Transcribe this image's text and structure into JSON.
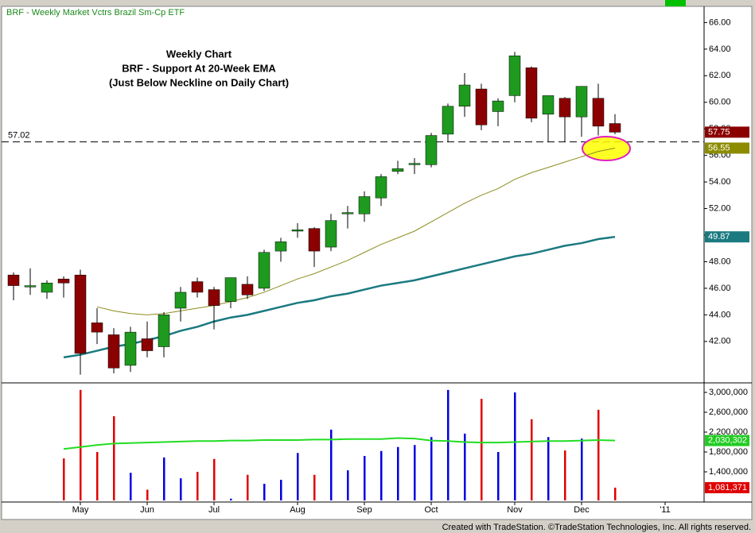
{
  "chart_data": {
    "type": "candlestick",
    "title": "BRF - Weekly  Market Vctrs Brazil Sm-Cp ETF",
    "annotations": [
      "Weekly Chart",
      "BRF - Support At 20-Week EMA",
      "(Just Below Neckline on Daily Chart)"
    ],
    "footer": "Created with TradeStation. ©TradeStation Technologies, Inc. All rights reserved.",
    "categories": [
      null,
      null,
      null,
      null,
      "May",
      null,
      null,
      null,
      "Jun",
      null,
      null,
      null,
      "Jul",
      null,
      null,
      null,
      null,
      "Aug",
      null,
      null,
      null,
      "Sep",
      null,
      null,
      null,
      "Oct",
      null,
      null,
      null,
      null,
      "Nov",
      null,
      null,
      null,
      "Dec",
      null,
      null,
      null,
      null,
      "'11",
      null,
      null
    ],
    "open": [
      47.0,
      46.1,
      45.7,
      46.7,
      47.0,
      43.4,
      42.5,
      40.2,
      42.2,
      41.6,
      44.5,
      46.5,
      45.9,
      45.0,
      46.3,
      46.0,
      48.8,
      50.3,
      50.5,
      49.1,
      51.6,
      51.6,
      52.8,
      54.8,
      55.3,
      55.3,
      57.6,
      59.7,
      61.0,
      59.3,
      60.5,
      62.6,
      59.1,
      60.3,
      58.9,
      60.3,
      58.4,
      null,
      null,
      null,
      null,
      null
    ],
    "high": [
      47.2,
      47.5,
      46.6,
      46.9,
      47.4,
      44.5,
      43.0,
      43.1,
      43.5,
      44.2,
      46.1,
      46.8,
      46.1,
      46.8,
      46.9,
      48.9,
      49.8,
      50.9,
      50.6,
      51.6,
      52.2,
      53.3,
      54.6,
      55.6,
      55.8,
      57.7,
      59.9,
      62.2,
      61.4,
      60.3,
      63.8,
      62.7,
      60.5,
      60.4,
      61.2,
      61.4,
      59.1,
      null,
      null,
      null,
      null,
      null
    ],
    "low": [
      45.1,
      45.5,
      45.2,
      45.3,
      39.5,
      41.8,
      39.6,
      39.7,
      40.8,
      40.8,
      43.5,
      45.3,
      42.9,
      44.5,
      45.2,
      45.8,
      48.0,
      49.8,
      47.6,
      48.8,
      50.5,
      51.0,
      52.2,
      54.6,
      54.6,
      55.1,
      57.0,
      58.9,
      57.9,
      58.2,
      60.0,
      58.5,
      57.0,
      57.0,
      57.4,
      57.5,
      57.6,
      null,
      null,
      null,
      null,
      null
    ],
    "close": [
      46.2,
      46.2,
      46.4,
      46.4,
      41.1,
      42.7,
      40.0,
      42.7,
      41.3,
      44.0,
      45.7,
      45.7,
      44.7,
      46.8,
      45.5,
      48.7,
      49.5,
      50.4,
      48.8,
      51.1,
      51.7,
      52.9,
      54.4,
      55.0,
      55.4,
      57.5,
      59.7,
      61.3,
      58.3,
      60.1,
      63.5,
      58.8,
      60.5,
      58.9,
      61.2,
      58.2,
      57.75,
      null,
      null,
      null,
      null,
      null
    ],
    "up_color": "#1e9a1e",
    "down_color": "#8b0000",
    "ylim": [
      39,
      67.1
    ],
    "yticks": [
      {
        "value": 66,
        "label": "66.00"
      },
      {
        "value": 64,
        "label": "64.00"
      },
      {
        "value": 62,
        "label": "62.00"
      },
      {
        "value": 60,
        "label": "60.00"
      },
      {
        "value": 58,
        "label": "58.00"
      },
      {
        "value": 56,
        "label": "56.00"
      },
      {
        "value": 54,
        "label": "54.00"
      },
      {
        "value": 52,
        "label": "52.00"
      },
      {
        "value": 50,
        "label": "50.00"
      },
      {
        "value": 48,
        "label": "48.00"
      },
      {
        "value": 46,
        "label": "46.00"
      },
      {
        "value": 44,
        "label": "44.00"
      },
      {
        "value": 42,
        "label": "42.00"
      }
    ],
    "overlays": [
      {
        "color": "#8c8c1e",
        "values": [
          null,
          null,
          null,
          null,
          null,
          44.6,
          44.3,
          44.1,
          44.0,
          44.1,
          44.3,
          44.5,
          44.7,
          45.0,
          45.3,
          45.7,
          46.2,
          46.7,
          47.1,
          47.6,
          48.1,
          48.7,
          49.3,
          49.8,
          50.3,
          51.0,
          51.7,
          52.4,
          53.0,
          53.5,
          54.2,
          54.7,
          55.1,
          55.5,
          55.9,
          56.3,
          56.55,
          null,
          null,
          null,
          null,
          null
        ]
      },
      {
        "color": "#1a7a80",
        "values": [
          null,
          null,
          null,
          40.8,
          41.0,
          41.3,
          41.6,
          41.8,
          42.1,
          42.4,
          42.8,
          43.1,
          43.5,
          43.8,
          44.0,
          44.3,
          44.6,
          44.9,
          45.1,
          45.4,
          45.6,
          45.9,
          46.2,
          46.4,
          46.6,
          46.9,
          47.2,
          47.5,
          47.8,
          48.1,
          48.4,
          48.6,
          48.9,
          49.2,
          49.4,
          49.7,
          49.87,
          null,
          null,
          null,
          null,
          null
        ]
      }
    ],
    "reference_line": {
      "value": 57.02,
      "label": "57.02"
    },
    "price_tags": [
      {
        "value": 57.75,
        "label": "57.75",
        "color": "#8b0000"
      },
      {
        "value": 56.55,
        "label": "56.55",
        "color": "#8c8c00"
      },
      {
        "value": 49.87,
        "label": "49.87",
        "color": "#1a7a80"
      }
    ],
    "volume": {
      "values": [
        null,
        null,
        null,
        1670000,
        3050000,
        1800000,
        2520000,
        1380000,
        1040000,
        1690000,
        1270000,
        1400000,
        1660000,
        860000,
        1340000,
        1160000,
        1240000,
        1780000,
        1340000,
        2250000,
        1430000,
        1720000,
        1820000,
        1900000,
        1940000,
        2100000,
        3050000,
        2170000,
        2870000,
        1800000,
        3000000,
        2460000,
        2100000,
        1830000,
        2070000,
        2650000,
        1081371,
        null,
        null,
        null,
        null,
        null
      ],
      "up_color": "#0000e0",
      "down_color": "#e00000",
      "ylim": [
        824000,
        3144000
      ],
      "yticks": [
        {
          "value": 3000000,
          "label": "3,000,000"
        },
        {
          "value": 2600000,
          "label": "2,600,000"
        },
        {
          "value": 2200000,
          "label": "2,200,000"
        },
        {
          "value": 1800000,
          "label": "1,800,000"
        },
        {
          "value": 1400000,
          "label": "1,400,000"
        }
      ],
      "average": {
        "color": "#22dd22",
        "values": [
          null,
          null,
          null,
          1860000,
          1900000,
          1940000,
          1970000,
          1980000,
          1990000,
          2000000,
          2010000,
          2020000,
          2020000,
          2030000,
          2030000,
          2040000,
          2040000,
          2040000,
          2050000,
          2050000,
          2060000,
          2060000,
          2060000,
          2080000,
          2070000,
          2030000,
          2020000,
          2000000,
          1990000,
          1990000,
          2000000,
          2010000,
          2020000,
          2020000,
          2030000,
          2040000,
          2030302,
          null,
          null,
          null,
          null,
          null
        ]
      },
      "tags": [
        {
          "value": 2030302,
          "label": "2,030,302",
          "color": "#22cc22"
        },
        {
          "value": 1081371,
          "label": "1,081,371",
          "color": "#e00000"
        }
      ]
    }
  }
}
